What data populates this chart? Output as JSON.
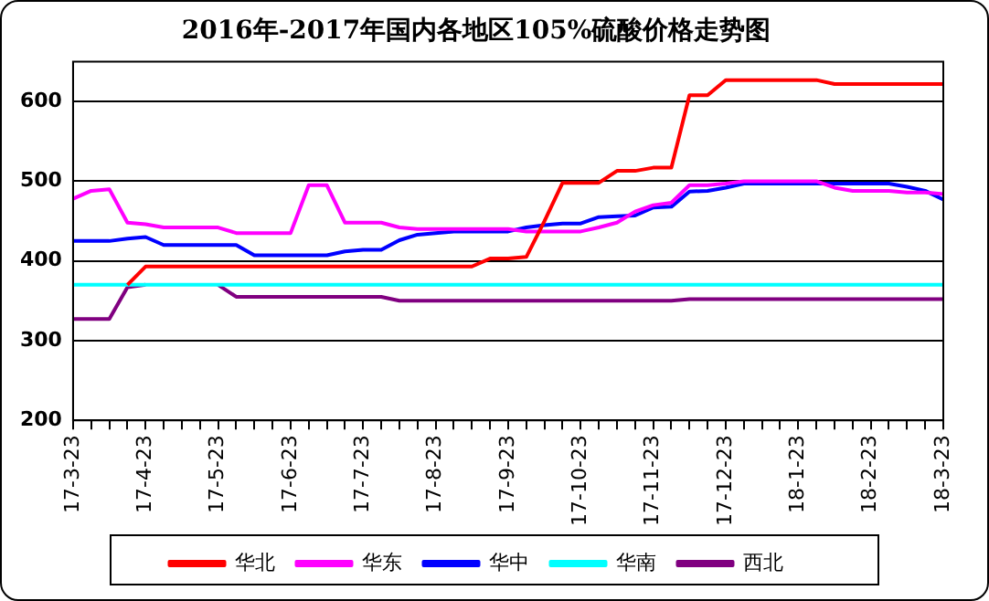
{
  "chart_data": {
    "type": "line",
    "title": "2016年-2017年国内各地区105%硫酸价格走势图",
    "categories": [
      "17-3-23",
      null,
      null,
      null,
      "17-4-23",
      null,
      null,
      null,
      "17-5-23",
      null,
      null,
      null,
      "17-6-23",
      null,
      null,
      null,
      "17-7-23",
      null,
      null,
      null,
      "17-8-23",
      null,
      null,
      null,
      "17-9-23",
      null,
      null,
      null,
      "17-10-23",
      null,
      null,
      null,
      "17-11-23",
      null,
      null,
      null,
      "17-12-23",
      null,
      null,
      null,
      "18-1-23",
      null,
      null,
      null,
      "18-2-23",
      null,
      null,
      null,
      "18-3-23"
    ],
    "series": [
      {
        "name": "华北",
        "color": "#ff0000",
        "values": [
          null,
          null,
          null,
          370,
          393,
          393,
          393,
          393,
          393,
          393,
          393,
          393,
          393,
          393,
          393,
          393,
          393,
          393,
          393,
          393,
          393,
          393,
          393,
          403,
          403,
          405,
          450,
          498,
          498,
          498,
          513,
          513,
          517,
          517,
          608,
          608,
          627,
          627,
          627,
          627,
          627,
          627,
          622,
          622,
          622,
          622,
          622,
          622,
          622
        ]
      },
      {
        "name": "华东",
        "color": "#ff00ff",
        "values": [
          478,
          488,
          490,
          448,
          446,
          442,
          442,
          442,
          442,
          435,
          435,
          435,
          435,
          495,
          495,
          448,
          448,
          448,
          442,
          440,
          440,
          440,
          440,
          440,
          440,
          437,
          437,
          437,
          437,
          442,
          448,
          462,
          470,
          473,
          495,
          495,
          497,
          500,
          500,
          500,
          500,
          500,
          492,
          488,
          488,
          488,
          486,
          486,
          484
        ]
      },
      {
        "name": "华中",
        "color": "#0000ff",
        "values": [
          425,
          425,
          425,
          428,
          430,
          420,
          420,
          420,
          420,
          420,
          407,
          407,
          407,
          407,
          407,
          412,
          414,
          414,
          426,
          433,
          435,
          437,
          437,
          437,
          437,
          442,
          445,
          447,
          447,
          455,
          456,
          457,
          467,
          468,
          487,
          488,
          492,
          497,
          497,
          497,
          497,
          497,
          497,
          497,
          497,
          497,
          493,
          488,
          477
        ]
      },
      {
        "name": "华南",
        "color": "#00ffff",
        "values": [
          370,
          370,
          370,
          370,
          370,
          370,
          370,
          370,
          370,
          370,
          370,
          370,
          370,
          370,
          370,
          370,
          370,
          370,
          370,
          370,
          370,
          370,
          370,
          370,
          370,
          370,
          370,
          370,
          370,
          370,
          370,
          370,
          370,
          370,
          370,
          370,
          370,
          370,
          370,
          370,
          370,
          370,
          370,
          370,
          370,
          370,
          370,
          370,
          370
        ]
      },
      {
        "name": "西北",
        "color": "#800080",
        "values": [
          327,
          327,
          327,
          367,
          370,
          null,
          null,
          null,
          370,
          355,
          355,
          355,
          355,
          355,
          355,
          355,
          355,
          355,
          350,
          350,
          350,
          350,
          350,
          350,
          350,
          350,
          350,
          350,
          350,
          350,
          350,
          350,
          350,
          350,
          352,
          352,
          352,
          352,
          352,
          352,
          352,
          352,
          352,
          352,
          352,
          352,
          352,
          352,
          352
        ]
      }
    ],
    "ylim": [
      200,
      650
    ],
    "yticks": [
      200,
      300,
      400,
      500,
      600
    ],
    "grid": "y",
    "legend": "bottom",
    "marker": "none",
    "line_style": "solid"
  }
}
